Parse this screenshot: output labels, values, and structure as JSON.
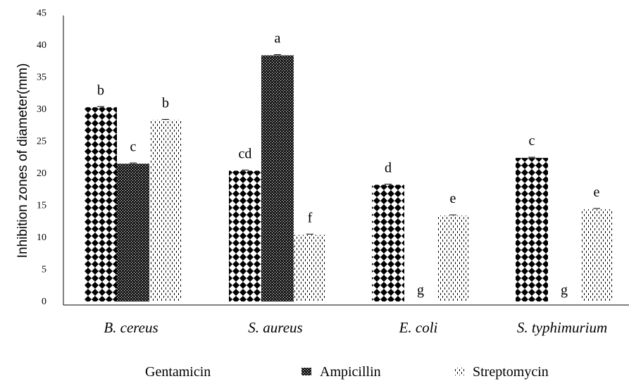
{
  "chart_data": {
    "type": "bar",
    "title": "",
    "xlabel": "",
    "ylabel": "Inhibition zones of diameter(mm)",
    "ylim": [
      0,
      45
    ],
    "yticks": [
      0,
      5,
      10,
      15,
      20,
      25,
      30,
      35,
      40,
      45
    ],
    "categories": [
      "B. cereus",
      "S. aureus",
      "E. coli",
      "S. typhimurium"
    ],
    "series": [
      {
        "name": "Gentamicin",
        "values": [
          30.3,
          20.4,
          18.2,
          22.4
        ],
        "labels": [
          "b",
          "cd",
          "d",
          "c"
        ],
        "pattern": "diamond"
      },
      {
        "name": "Ampicillin",
        "values": [
          21.5,
          38.4,
          0,
          0
        ],
        "labels": [
          "c",
          "a",
          "g",
          "g"
        ],
        "pattern": "dense"
      },
      {
        "name": "Streptomycin",
        "values": [
          28.3,
          10.4,
          13.4,
          14.4
        ],
        "labels": [
          "b",
          "f",
          "e",
          "e"
        ],
        "pattern": "dash"
      }
    ],
    "grid": false,
    "legend": "bottom"
  }
}
